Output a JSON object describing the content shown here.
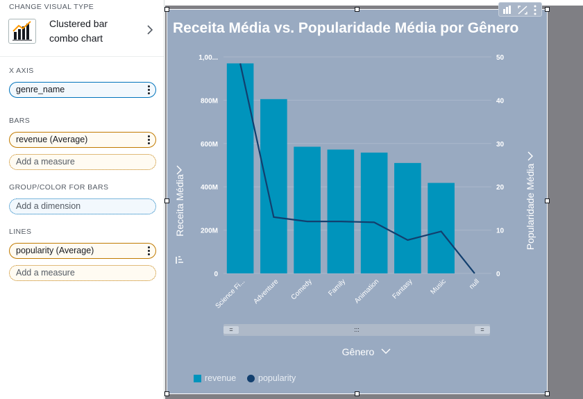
{
  "panel": {
    "visual_type": {
      "section_title": "CHANGE VISUAL TYPE",
      "label_line1": "Clustered bar",
      "label_line2": "combo chart"
    },
    "x_axis": {
      "section_title": "X AXIS",
      "field": "genre_name"
    },
    "bars": {
      "section_title": "BARS",
      "field": "revenue (Average)",
      "add": "Add a measure"
    },
    "group": {
      "section_title": "GROUP/COLOR FOR BARS",
      "add": "Add a dimension"
    },
    "lines": {
      "section_title": "LINES",
      "field": "popularity (Average)",
      "add": "Add a measure"
    }
  },
  "visual": {
    "title": "Receita Média vs. Popularidade Média por Gênero",
    "x_axis_title": "Gênero",
    "y_left_title": "Receita Média",
    "y_right_title": "Popularidade Média",
    "scrollbar_left": "=",
    "scrollbar_mid": ":::",
    "scrollbar_right": "=",
    "legend": [
      {
        "label": "revenue"
      },
      {
        "label": "popularity"
      }
    ],
    "colors": {
      "bar": "#0094bc",
      "line": "#123f6e",
      "background": "#99aac1"
    }
  },
  "chart_data": {
    "type": "bar",
    "title": "Receita Média vs. Popularidade Média por Gênero",
    "xlabel": "Gênero",
    "ylabel": "Receita Média",
    "y2label": "Popularidade Média",
    "categories": [
      "Science Fi...",
      "Adventure",
      "Comedy",
      "Family",
      "Animation",
      "Fantasy",
      "Music",
      "null"
    ],
    "series": [
      {
        "name": "revenue",
        "type": "bar",
        "axis": "left",
        "values": [
          970000000,
          805000000,
          585000000,
          572000000,
          558000000,
          510000000,
          418000000,
          0
        ]
      },
      {
        "name": "popularity",
        "type": "line",
        "axis": "right",
        "values": [
          48.5,
          13,
          12,
          12,
          11.8,
          7.7,
          9.7,
          0
        ]
      }
    ],
    "ylim": [
      0,
      1000000000
    ],
    "y2lim": [
      0,
      50
    ],
    "y_ticks": [
      "0",
      "200M",
      "400M",
      "600M",
      "800M",
      "1,00..."
    ],
    "y_tick_values": [
      0,
      200000000,
      400000000,
      600000000,
      800000000,
      1000000000
    ],
    "y2_ticks": [
      "0",
      "10",
      "20",
      "30",
      "40",
      "50"
    ],
    "y2_tick_values": [
      0,
      10,
      20,
      30,
      40,
      50
    ],
    "grid": true,
    "legend_position": "bottom-left"
  }
}
